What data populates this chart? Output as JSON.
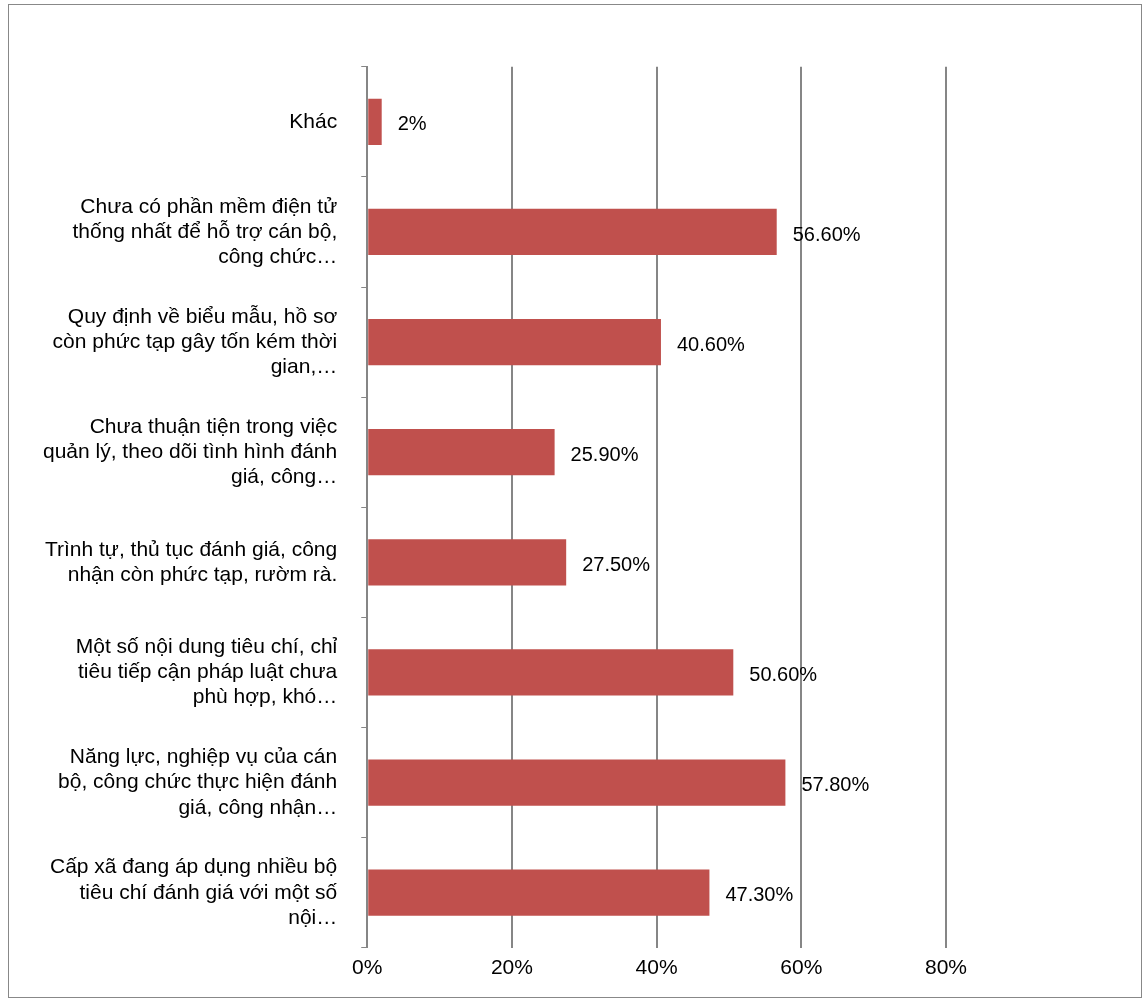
{
  "chart_data": {
    "type": "bar",
    "orientation": "horizontal",
    "categories": [
      "Khác",
      "Chưa có phần mềm điện tử thống nhất để hỗ trợ cán bộ, công chức…",
      "Quy định về biểu mẫu, hồ sơ còn phức tạp gây tốn kém thời gian,…",
      "Chưa thuận tiện trong việc quản lý, theo dõi tình hình đánh giá, công…",
      "Trình tự, thủ tục đánh giá, công nhận còn phức tạp, rườm rà.",
      "Một số nội dung tiêu chí, chỉ tiêu tiếp cận pháp luật chưa phù hợp, khó…",
      "Năng lực, nghiệp vụ của cán bộ, công chức thực hiện đánh giá, công nhận…",
      "Cấp xã đang áp dụng nhiều bộ tiêu chí đánh giá với một số nội…"
    ],
    "values": [
      2,
      56.6,
      40.6,
      25.9,
      27.5,
      50.6,
      57.8,
      47.3
    ],
    "value_labels": [
      "2%",
      "56.60%",
      "40.60%",
      "25.90%",
      "27.50%",
      "50.60%",
      "57.80%",
      "47.30%"
    ],
    "color": "#c0504d",
    "xlim": [
      0,
      80
    ],
    "xticks": [
      {
        "value": 0,
        "label": "0%"
      },
      {
        "value": 20,
        "label": "20%"
      },
      {
        "value": 40,
        "label": "40%"
      },
      {
        "value": 60,
        "label": "60%"
      },
      {
        "value": 80,
        "label": "80%"
      }
    ],
    "grid": "x",
    "legend": false
  }
}
